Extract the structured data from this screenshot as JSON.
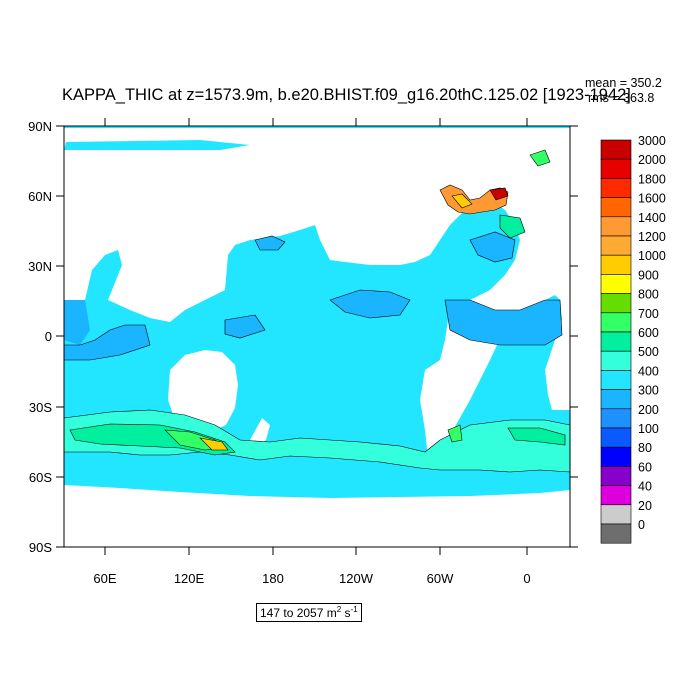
{
  "map": {
    "title": "KAPPA_THIC at z=1573.9m, b.e20.BHIST.f09_g16.20thC.125.02 [1923-1942]",
    "stats": {
      "mean": "mean = 350.2",
      "rms": "rms = 363.8"
    },
    "range": {
      "text": "147 to 2057 m",
      "unit_exp1": "2",
      "mid": " s",
      "unit_exp2": "-1"
    },
    "lat_labels": [
      "90N",
      "60N",
      "30N",
      "0",
      "30S",
      "60S",
      "90S"
    ],
    "lon_labels": [
      "60E",
      "120E",
      "180",
      "120W",
      "60W",
      "0"
    ],
    "colorbar": {
      "labels": [
        "3000",
        "2000",
        "1800",
        "1600",
        "1400",
        "1200",
        "1000",
        "900",
        "800",
        "700",
        "600",
        "500",
        "400",
        "300",
        "200",
        "100",
        "80",
        "60",
        "40",
        "20",
        "0"
      ],
      "colors": [
        "#c80000",
        "#e60000",
        "#ff2a00",
        "#ff6600",
        "#ff9933",
        "#ffaa33",
        "#ffcc00",
        "#ffff00",
        "#66dd00",
        "#33ff66",
        "#00f0a0",
        "#33ffdd",
        "#22e6ff",
        "#1ab4ff",
        "#1e90ff",
        "#0a5aff",
        "#0000ff",
        "#8800cc",
        "#dd00dd",
        "#cccccc",
        "#6e6e6e"
      ]
    },
    "colors": {
      "ocean_base": "#22e6ff",
      "land": "#ffffff",
      "contour": "#000000"
    }
  }
}
